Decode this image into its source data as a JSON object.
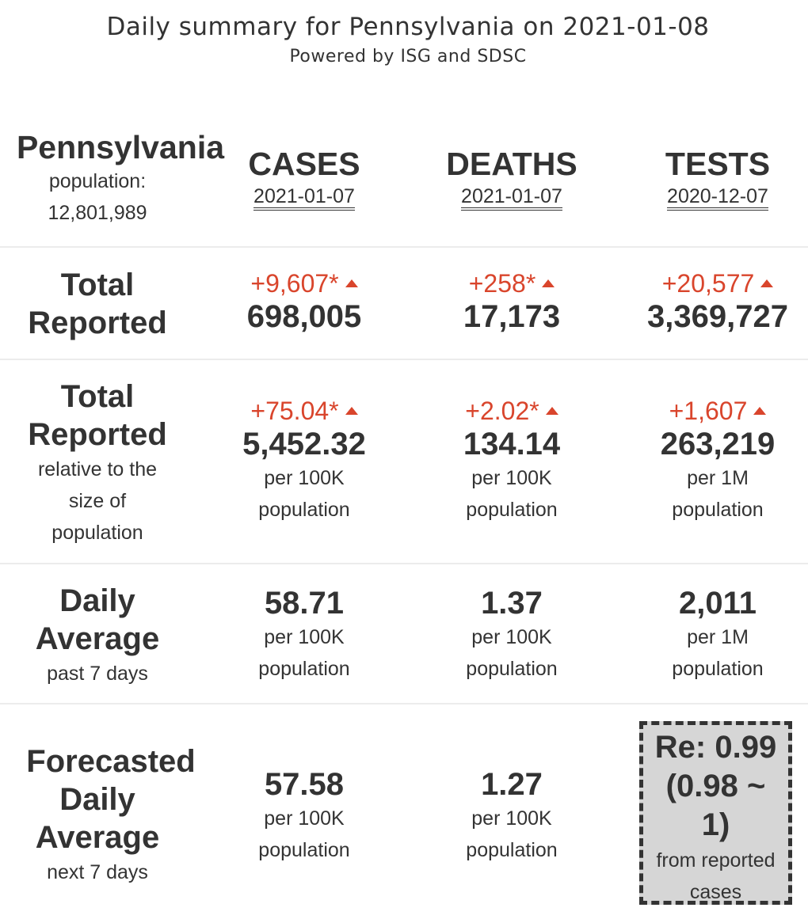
{
  "header": {
    "title": "Daily summary for Pennsylvania on 2021-01-08",
    "subtitle": "Powered by ISG and SDSC"
  },
  "state": {
    "name": "Pennsylvania",
    "population_label": "population:",
    "population": "12,801,989"
  },
  "columns": [
    {
      "label": "CASES",
      "date": "2021-01-07"
    },
    {
      "label": "DEATHS",
      "date": "2021-01-07"
    },
    {
      "label": "TESTS",
      "date": "2020-12-07"
    }
  ],
  "rows": {
    "total": {
      "label_line1": "Total",
      "label_line2": "Reported",
      "cases": {
        "change": "+9,607*",
        "value": "698,005"
      },
      "deaths": {
        "change": "+258*",
        "value": "17,173"
      },
      "tests": {
        "change": "+20,577",
        "value": "3,369,727"
      }
    },
    "relative": {
      "label_line1": "Total",
      "label_line2": "Reported",
      "sub1": "relative to the",
      "sub2": "size of",
      "sub3": "population",
      "cases": {
        "change": "+75.04*",
        "value": "5,452.32",
        "unit1": "per 100K",
        "unit2": "population"
      },
      "deaths": {
        "change": "+2.02*",
        "value": "134.14",
        "unit1": "per 100K",
        "unit2": "population"
      },
      "tests": {
        "change": "+1,607",
        "value": "263,219",
        "unit1": "per 1M",
        "unit2": "population"
      }
    },
    "daily": {
      "label_line1": "Daily",
      "label_line2": "Average",
      "sub1": "past 7 days",
      "cases": {
        "value": "58.71",
        "unit1": "per 100K",
        "unit2": "population"
      },
      "deaths": {
        "value": "1.37",
        "unit1": "per 100K",
        "unit2": "population"
      },
      "tests": {
        "value": "2,011",
        "unit1": "per 1M",
        "unit2": "population"
      }
    },
    "forecast": {
      "label_line1": "Forecasted",
      "label_line2": "Daily",
      "label_line3": "Average",
      "sub1": "next 7 days",
      "cases": {
        "value": "57.58",
        "unit1": "per 100K",
        "unit2": "population"
      },
      "deaths": {
        "value": "1.27",
        "unit1": "per 100K",
        "unit2": "population"
      },
      "re": {
        "line1": "Re: 0.99",
        "line2": "(0.98 ~",
        "line3": "1)",
        "sub1": "from reported",
        "sub2": "cases"
      }
    }
  },
  "colors": {
    "increase": "#d9452c",
    "text": "#333333",
    "re_box_bg": "#d6d6d6"
  }
}
